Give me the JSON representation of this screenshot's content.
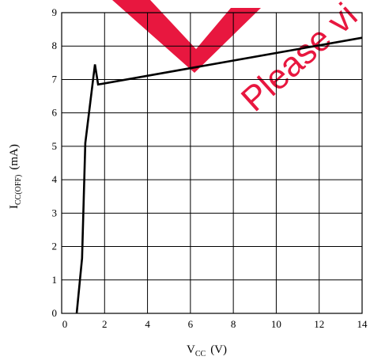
{
  "chart_data": {
    "type": "line",
    "title": "",
    "xlabel": "V",
    "xlabel_sub": "CC",
    "xlabel_unit": "(V)",
    "ylabel": "I",
    "ylabel_sub": "CC(OFF)",
    "ylabel_unit": "(mA)",
    "xlim": [
      0,
      14
    ],
    "ylim": [
      0,
      9
    ],
    "xticks": [
      0,
      2,
      4,
      6,
      8,
      10,
      12,
      14
    ],
    "yticks": [
      0,
      1,
      2,
      3,
      4,
      5,
      6,
      7,
      8,
      9
    ],
    "grid": true,
    "series": [
      {
        "x": [
          0.7,
          0.95,
          1.1,
          1.55,
          1.7,
          14.0
        ],
        "y": [
          0.0,
          1.65,
          5.1,
          7.45,
          6.85,
          8.25
        ]
      }
    ]
  },
  "watermark": {
    "text": "Please vi",
    "color": "#e8173f"
  }
}
